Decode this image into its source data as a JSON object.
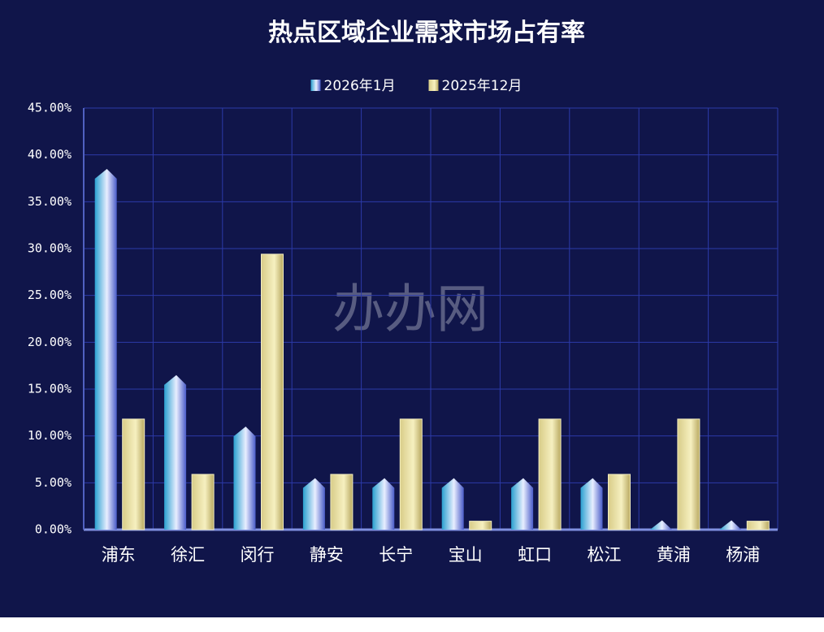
{
  "chart_data": {
    "type": "bar",
    "title": "热点区域企业需求市场占有率",
    "watermark": "办办网",
    "categories": [
      "浦东",
      "徐汇",
      "闵行",
      "静安",
      "长宁",
      "宝山",
      "虹口",
      "松江",
      "黄浦",
      "杨浦"
    ],
    "series": [
      {
        "name": "2026年1月",
        "color": "#4a5cc8",
        "values": [
          38.5,
          16.5,
          11,
          5.5,
          5.5,
          5.5,
          5.5,
          5.5,
          1,
          1
        ]
      },
      {
        "name": "2025年12月",
        "color": "#d8cc88",
        "values": [
          11.8,
          5.9,
          29.4,
          5.9,
          11.8,
          0.9,
          11.8,
          5.9,
          11.8,
          0.9
        ]
      }
    ],
    "ylim": [
      0,
      45
    ],
    "yticks": [
      {
        "value": 0,
        "label": "0.00%"
      },
      {
        "value": 5,
        "label": "5.00%"
      },
      {
        "value": 10,
        "label": "10.00%"
      },
      {
        "value": 15,
        "label": "15.00%"
      },
      {
        "value": 20,
        "label": "20.00%"
      },
      {
        "value": 25,
        "label": "25.00%"
      },
      {
        "value": 30,
        "label": "30.00%"
      },
      {
        "value": 35,
        "label": "35.00%"
      },
      {
        "value": 40,
        "label": "40.00%"
      },
      {
        "value": 45,
        "label": "45.00%"
      }
    ],
    "grid": true,
    "legend": "top"
  }
}
